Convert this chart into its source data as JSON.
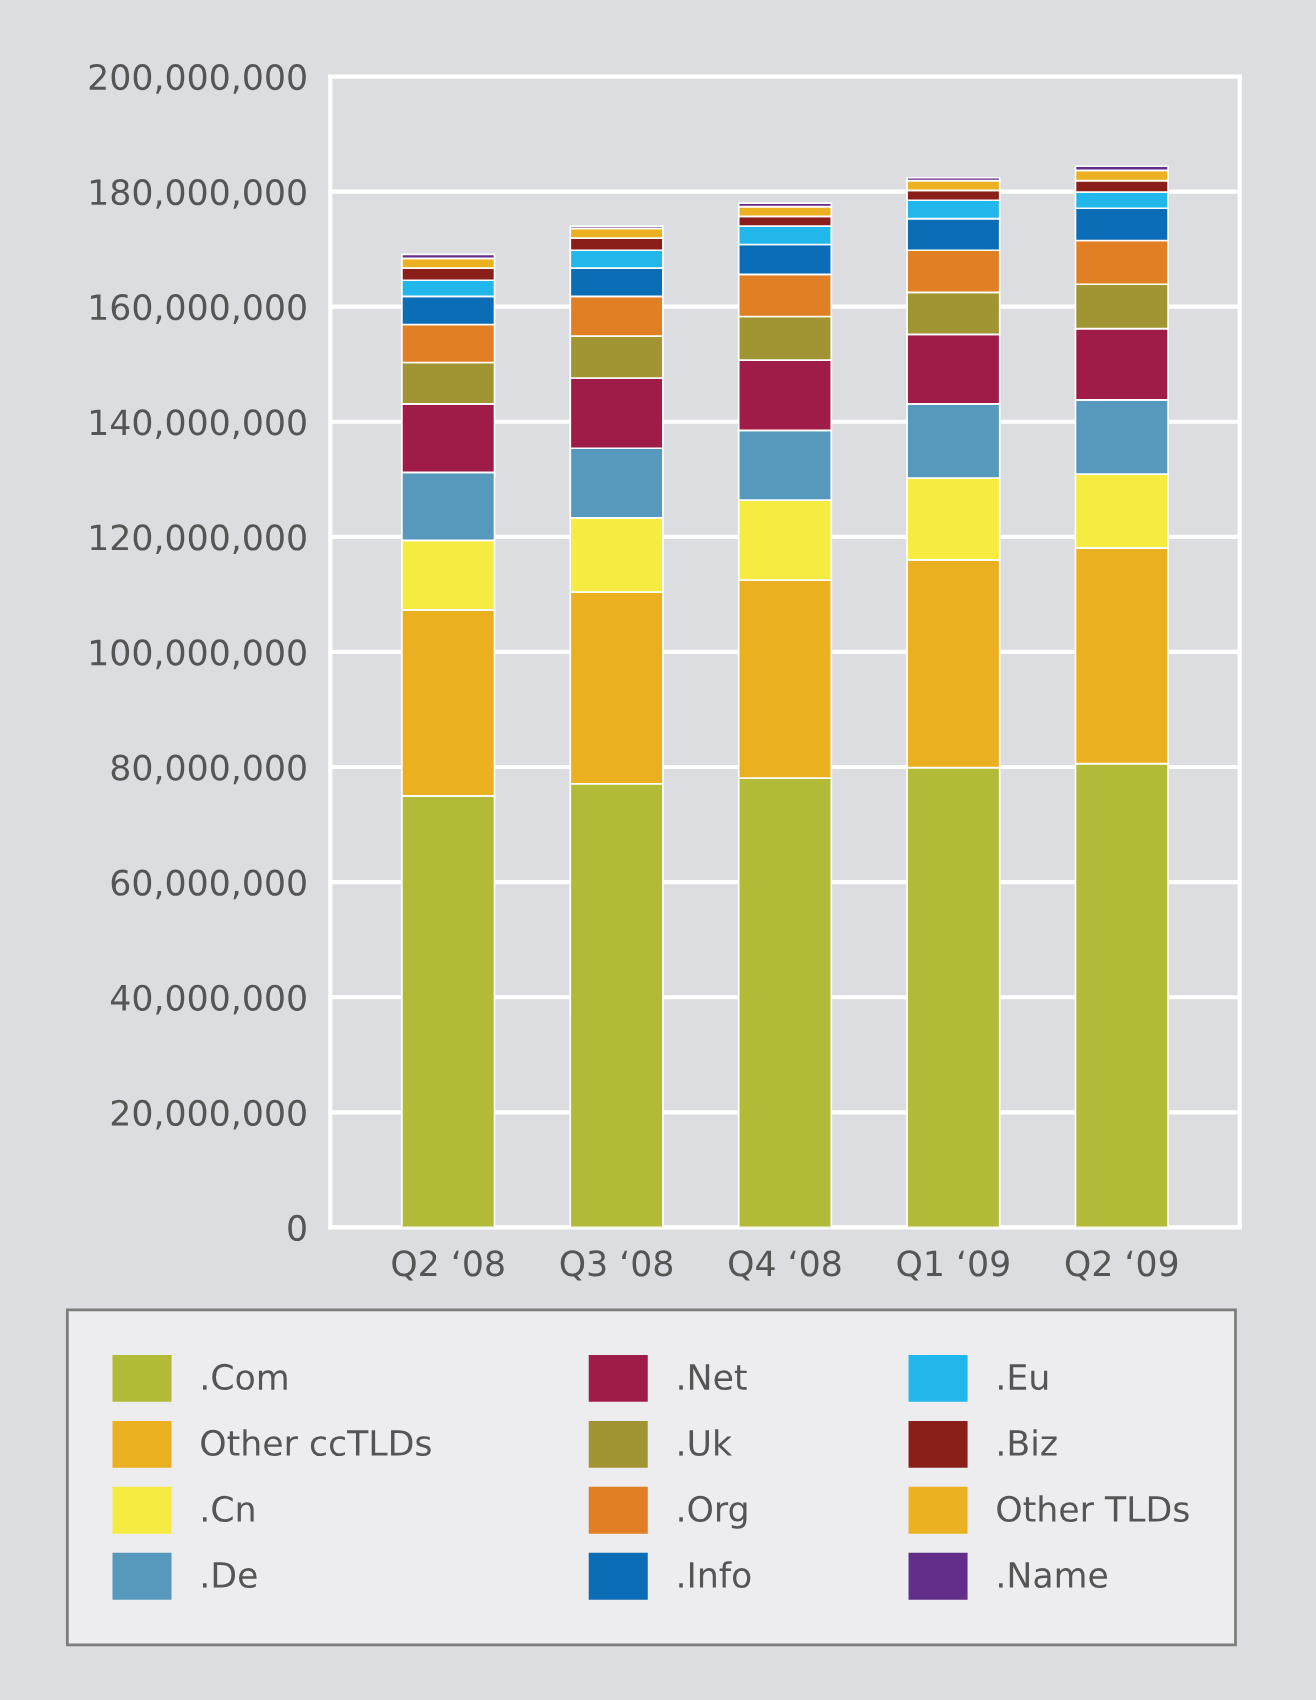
{
  "chart_data": {
    "type": "bar",
    "stacked": true,
    "categories": [
      "Q2 ‘08",
      "Q3 ‘08",
      "Q4 ‘08",
      "Q1 ‘09",
      "Q2 ‘09"
    ],
    "series": [
      {
        "name": ".Com",
        "color": "#b1bb37",
        "values": [
          75000000,
          77100000,
          78100000,
          79900000,
          80600000
        ]
      },
      {
        "name": "Other ccTLDs",
        "color": "#ebb020",
        "values": [
          32300000,
          33300000,
          34400000,
          36100000,
          37500000
        ]
      },
      {
        "name": ".Cn",
        "color": "#f6eb40",
        "values": [
          12100000,
          12900000,
          13900000,
          14200000,
          12800000
        ]
      },
      {
        "name": ".De",
        "color": "#5699bd",
        "values": [
          11800000,
          12100000,
          12100000,
          12900000,
          12900000
        ]
      },
      {
        "name": ".Net",
        "color": "#a01c48",
        "values": [
          11900000,
          12200000,
          12200000,
          12100000,
          12400000
        ]
      },
      {
        "name": ".Uk",
        "color": "#a19433",
        "values": [
          7200000,
          7300000,
          7600000,
          7300000,
          7700000
        ]
      },
      {
        "name": ".Org",
        "color": "#e07f24",
        "values": [
          6600000,
          6900000,
          7300000,
          7300000,
          7600000
        ]
      },
      {
        "name": ".Info",
        "color": "#0a6db5",
        "values": [
          4900000,
          4900000,
          5200000,
          5500000,
          5600000
        ]
      },
      {
        "name": ".Eu",
        "color": "#22b7ea",
        "values": [
          2800000,
          3100000,
          3200000,
          3200000,
          2800000
        ]
      },
      {
        "name": ".Biz",
        "color": "#8a1f1a",
        "values": [
          2100000,
          2100000,
          1700000,
          1700000,
          2000000
        ]
      },
      {
        "name": "Other TLDs",
        "color": "#ecb121",
        "values": [
          1700000,
          1700000,
          1700000,
          1700000,
          1800000
        ]
      },
      {
        "name": ".Name",
        "color": "#632d8a",
        "values": [
          700000,
          400000,
          600000,
          500000,
          700000
        ]
      }
    ],
    "ylim": [
      0,
      200000000
    ],
    "yticks": [
      0,
      {
        "value": 20000000,
        "label": "20,000,000"
      },
      {
        "value": 40000000,
        "label": "40,000,000"
      },
      {
        "value": 60000000,
        "label": "60,000,000"
      },
      {
        "value": 80000000,
        "label": "80,000,000"
      },
      {
        "value": 100000000,
        "label": "100,000,000"
      },
      {
        "value": 120000000,
        "label": "120,000,000"
      },
      {
        "value": 140000000,
        "label": "140,000,000"
      },
      {
        "value": 160000000,
        "label": "160,000,000"
      },
      {
        "value": 180000000,
        "label": "180,000,000"
      },
      {
        "value": 200000000,
        "label": "200,000,000"
      }
    ],
    "grid": "y",
    "legend": "bottom"
  }
}
